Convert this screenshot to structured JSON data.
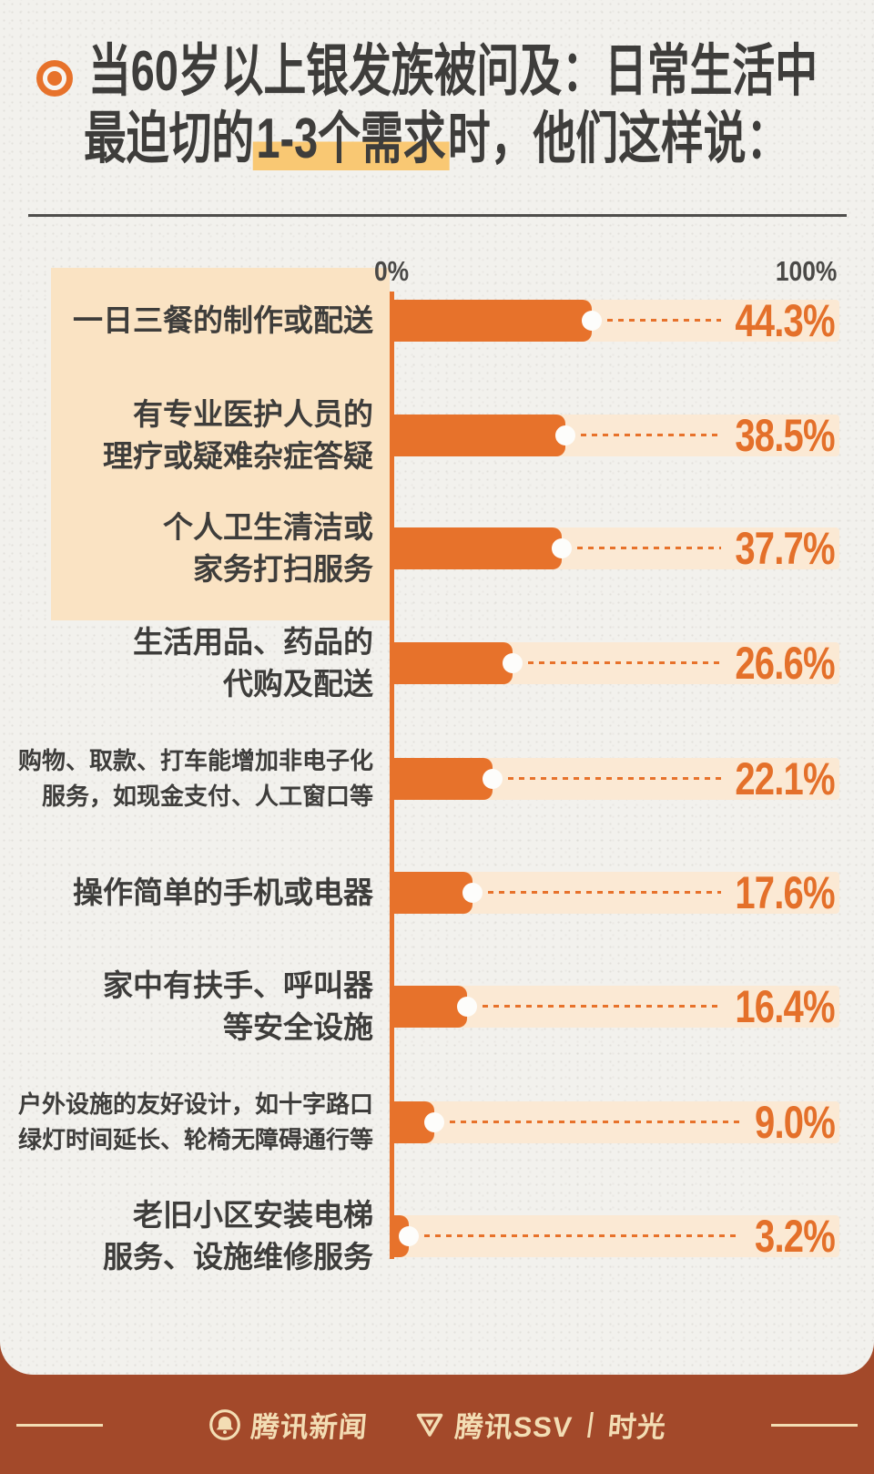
{
  "colors": {
    "accent_orange": "#E7722B",
    "highlight_gold": "#F9C873",
    "label_block": "#FAE3C3",
    "bar_track": "#FBE9D4",
    "paper": "#F2F1ED",
    "footer_band": "#A3492A",
    "footer_text": "#F3DDB4",
    "title_text": "#3E3D3B"
  },
  "header": {
    "title_line1": "当60岁以上银发族被问及：日常生活中",
    "title_line2_pre": "最迫切的",
    "title_line2_highlight": "1-3个需求",
    "title_line2_post": "时，他们这样说："
  },
  "chart_data": {
    "type": "bar",
    "orientation": "horizontal",
    "title": "当60岁以上银发族被问及：日常生活中最迫切的1-3个需求时，他们这样说：",
    "axis": {
      "min_label": "0%",
      "max_label": "100%",
      "xlim": [
        0,
        100
      ]
    },
    "categories": [
      [
        "一日三餐的制作或配送"
      ],
      [
        "有专业医护人员的",
        "理疗或疑难杂症答疑"
      ],
      [
        "个人卫生清洁或",
        "家务打扫服务"
      ],
      [
        "生活用品、药品的",
        "代购及配送"
      ],
      [
        "购物、取款、打车能增加非电子化",
        "服务，如现金支付、人工窗口等"
      ],
      [
        "操作简单的手机或电器"
      ],
      [
        "家中有扶手、呼叫器",
        "等安全设施"
      ],
      [
        "户外设施的友好设计，如十字路口",
        "绿灯时间延长、轮椅无障碍通行等"
      ],
      [
        "老旧小区安装电梯",
        "服务、设施维修服务"
      ]
    ],
    "values": [
      44.3,
      38.5,
      37.7,
      26.6,
      22.1,
      17.6,
      16.4,
      9.0,
      3.2
    ],
    "value_labels": [
      "44.3%",
      "38.5%",
      "37.7%",
      "26.6%",
      "22.1%",
      "17.6%",
      "16.4%",
      "9.0%",
      "3.2%"
    ],
    "label_highlight_rows": [
      0,
      1,
      2
    ],
    "legend": null,
    "grid": false
  },
  "footer": {
    "brand_news": "腾讯新闻",
    "brand_ssv": "腾讯SSV",
    "separator": "|",
    "brand_time": "时光"
  }
}
